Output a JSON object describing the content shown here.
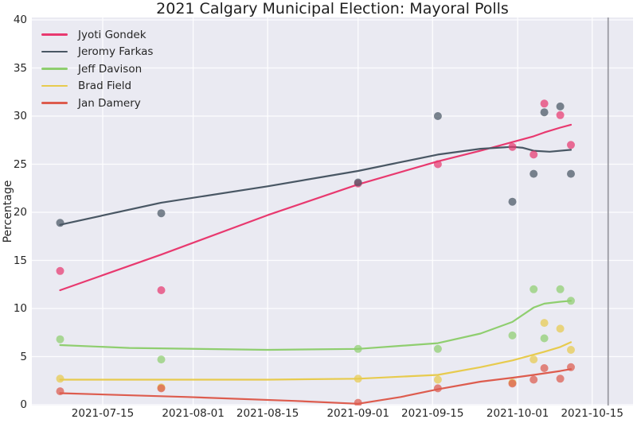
{
  "chart_data": {
    "type": "scatter",
    "title": "2021 Calgary Municipal Election: Mayoral Polls",
    "xlabel": "",
    "ylabel": "Percentage",
    "ylim": [
      0,
      40
    ],
    "y_ticks": [
      0,
      5,
      10,
      15,
      20,
      25,
      30,
      35,
      40
    ],
    "x_tick_labels": [
      "2021-07-15",
      "2021-08-01",
      "2021-08-15",
      "2021-09-01",
      "2021-09-15",
      "2021-10-01",
      "2021-10-15"
    ],
    "grid": "on",
    "legend_position": "upper left",
    "election_day_line": "2021-10-18",
    "background_color": "#eaeaf2",
    "grid_color": "#ffffff",
    "text_color": "#262626",
    "election_line_color": "#9b9ba3",
    "series": [
      {
        "name": "Jyoti Gondek",
        "color": "#e8396f",
        "points": [
          [
            "2021-07-07",
            13.9
          ],
          [
            "2021-07-26",
            11.9
          ],
          [
            "2021-09-01",
            23.0
          ],
          [
            "2021-09-16",
            25.0
          ],
          [
            "2021-09-30",
            26.8
          ],
          [
            "2021-10-04",
            26.0
          ],
          [
            "2021-10-06",
            31.3
          ],
          [
            "2021-10-09",
            30.1
          ],
          [
            "2021-10-11",
            27.0
          ]
        ],
        "trend": [
          [
            "2021-07-07",
            11.9
          ],
          [
            "2021-07-26",
            15.6
          ],
          [
            "2021-08-15",
            19.7
          ],
          [
            "2021-09-01",
            22.9
          ],
          [
            "2021-09-16",
            25.3
          ],
          [
            "2021-09-24",
            26.4
          ],
          [
            "2021-09-30",
            27.3
          ],
          [
            "2021-10-04",
            27.9
          ],
          [
            "2021-10-06",
            28.3
          ],
          [
            "2021-10-09",
            28.8
          ],
          [
            "2021-10-11",
            29.1
          ]
        ]
      },
      {
        "name": "Jeromy Farkas",
        "color": "#495764",
        "points": [
          [
            "2021-07-07",
            18.9
          ],
          [
            "2021-07-26",
            19.9
          ],
          [
            "2021-09-01",
            23.1
          ],
          [
            "2021-09-16",
            30.0
          ],
          [
            "2021-09-30",
            21.1
          ],
          [
            "2021-10-04",
            24.0
          ],
          [
            "2021-10-06",
            30.4
          ],
          [
            "2021-10-09",
            31.0
          ],
          [
            "2021-10-11",
            24.0
          ]
        ],
        "trend": [
          [
            "2021-07-07",
            18.7
          ],
          [
            "2021-07-26",
            21.0
          ],
          [
            "2021-08-15",
            22.7
          ],
          [
            "2021-09-01",
            24.3
          ],
          [
            "2021-09-16",
            26.0
          ],
          [
            "2021-09-24",
            26.6
          ],
          [
            "2021-09-30",
            26.8
          ],
          [
            "2021-10-02",
            26.7
          ],
          [
            "2021-10-04",
            26.4
          ],
          [
            "2021-10-07",
            26.3
          ],
          [
            "2021-10-11",
            26.5
          ]
        ]
      },
      {
        "name": "Jeff Davison",
        "color": "#8fce6f",
        "points": [
          [
            "2021-07-07",
            6.8
          ],
          [
            "2021-07-26",
            4.7
          ],
          [
            "2021-09-01",
            5.8
          ],
          [
            "2021-09-16",
            5.8
          ],
          [
            "2021-09-30",
            7.2
          ],
          [
            "2021-10-04",
            12.0
          ],
          [
            "2021-10-06",
            6.9
          ],
          [
            "2021-10-09",
            12.0
          ],
          [
            "2021-10-11",
            10.8
          ]
        ],
        "trend": [
          [
            "2021-07-07",
            6.2
          ],
          [
            "2021-07-20",
            5.9
          ],
          [
            "2021-08-15",
            5.7
          ],
          [
            "2021-09-01",
            5.8
          ],
          [
            "2021-09-16",
            6.4
          ],
          [
            "2021-09-24",
            7.4
          ],
          [
            "2021-09-30",
            8.6
          ],
          [
            "2021-10-04",
            10.1
          ],
          [
            "2021-10-06",
            10.5
          ],
          [
            "2021-10-09",
            10.7
          ],
          [
            "2021-10-11",
            10.8
          ]
        ]
      },
      {
        "name": "Brad Field",
        "color": "#e7cb4e",
        "points": [
          [
            "2021-07-07",
            2.7
          ],
          [
            "2021-07-26",
            1.8
          ],
          [
            "2021-09-01",
            2.7
          ],
          [
            "2021-09-16",
            2.6
          ],
          [
            "2021-09-30",
            2.3
          ],
          [
            "2021-10-04",
            4.7
          ],
          [
            "2021-10-06",
            8.5
          ],
          [
            "2021-10-09",
            7.9
          ],
          [
            "2021-10-11",
            5.7
          ]
        ],
        "trend": [
          [
            "2021-07-07",
            2.6
          ],
          [
            "2021-08-15",
            2.6
          ],
          [
            "2021-09-01",
            2.7
          ],
          [
            "2021-09-16",
            3.1
          ],
          [
            "2021-09-24",
            3.9
          ],
          [
            "2021-09-30",
            4.6
          ],
          [
            "2021-10-04",
            5.2
          ],
          [
            "2021-10-06",
            5.5
          ],
          [
            "2021-10-09",
            6.0
          ],
          [
            "2021-10-11",
            6.5
          ]
        ]
      },
      {
        "name": "Jan Damery",
        "color": "#dd5c4e",
        "points": [
          [
            "2021-07-07",
            1.4
          ],
          [
            "2021-07-26",
            1.7
          ],
          [
            "2021-09-01",
            0.2
          ],
          [
            "2021-09-16",
            1.7
          ],
          [
            "2021-09-30",
            2.2
          ],
          [
            "2021-10-04",
            2.6
          ],
          [
            "2021-10-06",
            3.8
          ],
          [
            "2021-10-09",
            2.7
          ],
          [
            "2021-10-11",
            3.9
          ]
        ],
        "trend": [
          [
            "2021-07-07",
            1.2
          ],
          [
            "2021-07-31",
            0.8
          ],
          [
            "2021-08-20",
            0.4
          ],
          [
            "2021-09-01",
            0.1
          ],
          [
            "2021-09-09",
            0.8
          ],
          [
            "2021-09-16",
            1.6
          ],
          [
            "2021-09-24",
            2.4
          ],
          [
            "2021-09-30",
            2.8
          ],
          [
            "2021-10-04",
            3.1
          ],
          [
            "2021-10-09",
            3.5
          ],
          [
            "2021-10-11",
            3.7
          ]
        ]
      }
    ]
  }
}
